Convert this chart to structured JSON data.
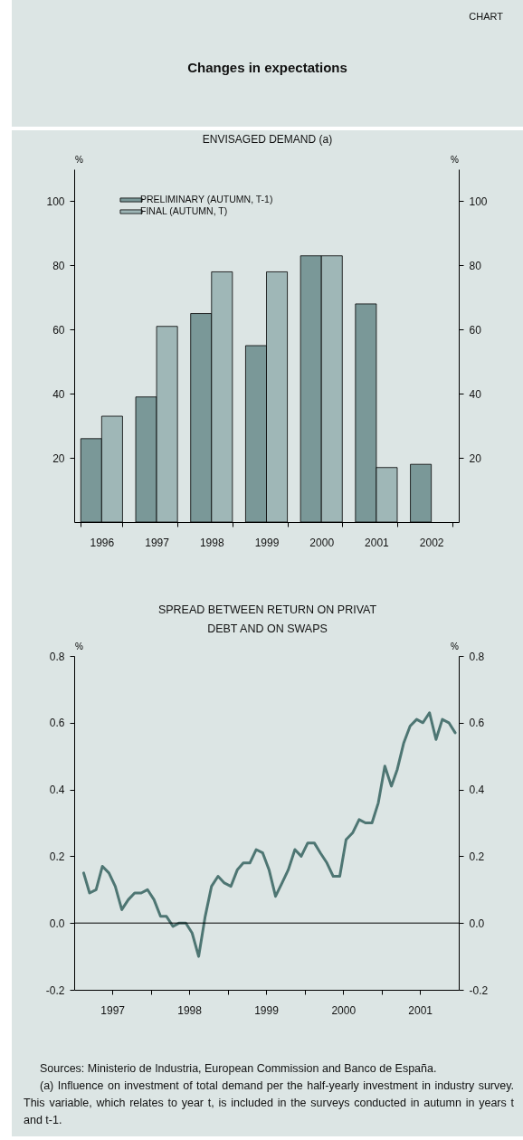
{
  "chart_data": [
    {
      "type": "bar",
      "title": "Changes in expectations",
      "subtitle": "ENVISAGED DEMAND (a)",
      "annotations": [
        "CHART"
      ],
      "ylabel": "%",
      "y2label": "%",
      "categories": [
        "1996",
        "1997",
        "1998",
        "1999",
        "2000",
        "2001",
        "2002"
      ],
      "series": [
        {
          "name": "PRELIMINARY (AUTUMN, T-1)",
          "color": "#7a9898",
          "values": [
            26,
            39,
            65,
            55,
            83,
            68,
            18
          ]
        },
        {
          "name": "FINAL (AUTUMN, T)",
          "color": "#9fb7b7",
          "values": [
            33,
            61,
            78,
            78,
            83,
            17,
            null
          ]
        }
      ],
      "ylim": [
        0,
        110
      ],
      "yticks": [
        20,
        40,
        60,
        80,
        100
      ],
      "y2lim": [
        0,
        110
      ],
      "y2ticks": [
        20,
        40,
        60,
        80,
        100
      ],
      "legend": "top left"
    },
    {
      "type": "line",
      "title": "SPREAD BETWEEN RETURN ON PRIVAT DEBT AND ON SWAPS",
      "ylabel": "%",
      "y2label": "%",
      "x": [
        "1997-02-15",
        "1997-03-15",
        "1997-04-15",
        "1997-05-15",
        "1997-06-15",
        "1997-07-15",
        "1997-08-15",
        "1997-09-15",
        "1997-10-15",
        "1997-11-15",
        "1997-12-15",
        "1998-01-15",
        "1998-02-15",
        "1998-03-15",
        "1998-04-15",
        "1998-05-15",
        "1998-06-15",
        "1998-07-15",
        "1998-08-15",
        "1998-09-15",
        "1998-10-15",
        "1998-11-15",
        "1998-12-15",
        "1999-01-15",
        "1999-02-15",
        "1999-03-15",
        "1999-04-15",
        "1999-05-15",
        "1999-06-15",
        "1999-07-15",
        "1999-08-15",
        "1999-09-15",
        "1999-10-15",
        "1999-11-15",
        "1999-12-15",
        "2000-01-15",
        "2000-02-15",
        "2000-03-15",
        "2000-04-15",
        "2000-05-15",
        "2000-06-15",
        "2000-07-15",
        "2000-08-15",
        "2000-09-15",
        "2000-10-15",
        "2000-11-15",
        "2000-12-15",
        "2001-01-15",
        "2001-02-15",
        "2001-03-15",
        "2001-04-15",
        "2001-05-15",
        "2001-06-15",
        "2001-07-15",
        "2001-08-15",
        "2001-09-15",
        "2001-10-15",
        "2001-11-15",
        "2001-12-15"
      ],
      "series": [
        {
          "color": "#4e7673",
          "values": [
            0.15,
            0.09,
            0.1,
            0.17,
            0.15,
            0.11,
            0.04,
            0.07,
            0.09,
            0.09,
            0.1,
            0.07,
            0.02,
            0.02,
            -0.01,
            0.0,
            0.0,
            -0.03,
            -0.1,
            0.02,
            0.11,
            0.14,
            0.12,
            0.11,
            0.16,
            0.18,
            0.18,
            0.22,
            0.21,
            0.16,
            0.08,
            0.12,
            0.16,
            0.22,
            0.2,
            0.24,
            0.24,
            0.21,
            0.18,
            0.14,
            0.14,
            0.25,
            0.27,
            0.31,
            0.3,
            0.3,
            0.36,
            0.47,
            0.41,
            0.46,
            0.54,
            0.59,
            0.61,
            0.6,
            0.63,
            0.55,
            0.61,
            0.6,
            0.57
          ]
        }
      ],
      "xlim": [
        "1997-01-01",
        "2002-01-01"
      ],
      "xticks": [
        {
          "value": "1997-07-01",
          "label": "1997"
        },
        {
          "value": "1998-01-01",
          "label": null
        },
        {
          "value": "1998-07-01",
          "label": "1998"
        },
        {
          "value": "1999-01-01",
          "label": null
        },
        {
          "value": "1999-07-01",
          "label": "1999"
        },
        {
          "value": "2000-01-01",
          "label": null
        },
        {
          "value": "2000-07-01",
          "label": "2000"
        },
        {
          "value": "2001-01-01",
          "label": null
        },
        {
          "value": "2001-07-01",
          "label": "2001"
        }
      ],
      "ylim": [
        -0.2,
        0.8
      ],
      "yticks": [
        {
          "value": -0.2,
          "label": "-0.2"
        },
        {
          "value": 0,
          "label": "0.0"
        },
        {
          "value": 0.2,
          "label": "0.2"
        },
        {
          "value": 0.4,
          "label": "0.4"
        },
        {
          "value": 0.6,
          "label": "0.6"
        },
        {
          "value": 0.8,
          "label": "0.8"
        }
      ],
      "y2lim": [
        -0.2,
        0.8
      ],
      "y2ticks": [
        {
          "value": -0.2,
          "label": "-0.2"
        },
        {
          "value": 0,
          "label": "0.0"
        },
        {
          "value": 0.2,
          "label": "0.2"
        },
        {
          "value": 0.4,
          "label": "0.4"
        },
        {
          "value": 0.6,
          "label": "0.6"
        },
        {
          "value": 0.8,
          "label": "0.8"
        }
      ],
      "ref_lines": [
        {
          "axis": "y",
          "value": 0,
          "color": "#000000"
        }
      ],
      "annotations": [
        "Sources: Ministerio de Industria, European Commission and Banco de España.",
        "(a) Influence on investment of total demand per the half-yearly investment in industry survey. This variable, which relates to year t, is included in the surveys conducted in autumn in years t and t-1."
      ]
    }
  ]
}
